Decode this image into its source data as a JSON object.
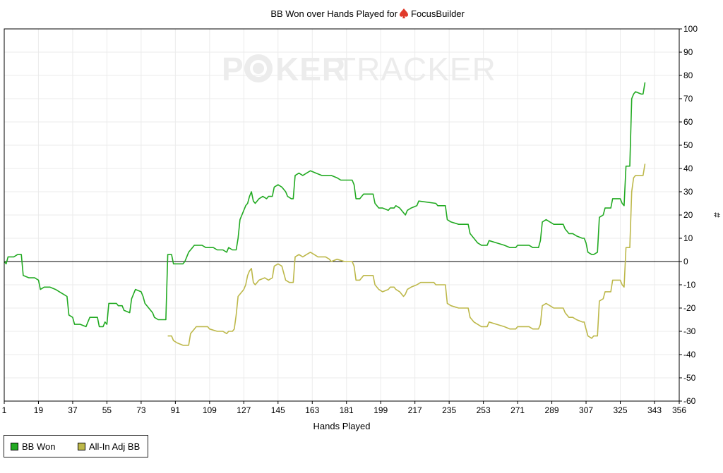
{
  "chart_data": {
    "type": "line",
    "title": "BB Won over Hands Played for",
    "player_name": "FocusBuilder",
    "xlabel": "Hands Played",
    "ylabel": "#",
    "watermark": {
      "part1": "P",
      "part2": "KER",
      "part3": "TRACKER"
    },
    "xlim": [
      1,
      356
    ],
    "ylim": [
      -60,
      100
    ],
    "x_ticks": [
      1,
      19,
      37,
      55,
      73,
      91,
      109,
      127,
      145,
      163,
      181,
      199,
      217,
      235,
      253,
      271,
      289,
      307,
      325,
      343,
      356
    ],
    "y_ticks": [
      -60,
      -50,
      -40,
      -30,
      -20,
      -10,
      0,
      10,
      20,
      30,
      40,
      50,
      60,
      70,
      80,
      90,
      100
    ],
    "grid": true,
    "legend_position": "bottom-left",
    "series": [
      {
        "name": "BB Won",
        "color": "#22aa22",
        "points": [
          [
            1,
            0
          ],
          [
            2,
            -1
          ],
          [
            3,
            2
          ],
          [
            6,
            2
          ],
          [
            8,
            3
          ],
          [
            10,
            3
          ],
          [
            11,
            -6
          ],
          [
            14,
            -7
          ],
          [
            17,
            -7
          ],
          [
            19,
            -8
          ],
          [
            20,
            -12
          ],
          [
            22,
            -11
          ],
          [
            25,
            -11
          ],
          [
            28,
            -12
          ],
          [
            30,
            -13
          ],
          [
            32,
            -14
          ],
          [
            34,
            -15
          ],
          [
            35,
            -23
          ],
          [
            37,
            -24
          ],
          [
            38,
            -27
          ],
          [
            41,
            -27
          ],
          [
            44,
            -28
          ],
          [
            46,
            -24
          ],
          [
            50,
            -24
          ],
          [
            51,
            -28
          ],
          [
            53,
            -28
          ],
          [
            54,
            -26
          ],
          [
            55,
            -27
          ],
          [
            56,
            -18
          ],
          [
            60,
            -18
          ],
          [
            61,
            -19
          ],
          [
            63,
            -19
          ],
          [
            64,
            -21
          ],
          [
            67,
            -22
          ],
          [
            68,
            -16
          ],
          [
            70,
            -12
          ],
          [
            73,
            -13
          ],
          [
            74,
            -15
          ],
          [
            75,
            -18
          ],
          [
            77,
            -20
          ],
          [
            79,
            -22
          ],
          [
            80,
            -24
          ],
          [
            82,
            -25
          ],
          [
            86,
            -25
          ],
          [
            87,
            3
          ],
          [
            89,
            3
          ],
          [
            90,
            -1
          ],
          [
            93,
            -1
          ],
          [
            95,
            -1
          ],
          [
            96,
            0
          ],
          [
            97,
            2
          ],
          [
            98,
            4
          ],
          [
            100,
            6
          ],
          [
            101,
            7
          ],
          [
            105,
            7
          ],
          [
            107,
            6
          ],
          [
            111,
            6
          ],
          [
            113,
            5
          ],
          [
            116,
            5
          ],
          [
            118,
            4
          ],
          [
            119,
            6
          ],
          [
            121,
            5
          ],
          [
            123,
            5
          ],
          [
            124,
            10
          ],
          [
            125,
            18
          ],
          [
            127,
            22
          ],
          [
            128,
            24
          ],
          [
            129,
            25
          ],
          [
            130,
            28
          ],
          [
            131,
            30
          ],
          [
            132,
            26
          ],
          [
            133,
            25
          ],
          [
            135,
            27
          ],
          [
            137,
            28
          ],
          [
            139,
            27
          ],
          [
            140,
            28
          ],
          [
            142,
            28
          ],
          [
            143,
            32
          ],
          [
            145,
            33
          ],
          [
            147,
            32
          ],
          [
            149,
            30
          ],
          [
            150,
            28
          ],
          [
            152,
            27
          ],
          [
            153,
            27
          ],
          [
            154,
            37
          ],
          [
            156,
            38
          ],
          [
            158,
            37
          ],
          [
            160,
            38
          ],
          [
            162,
            39
          ],
          [
            165,
            38
          ],
          [
            168,
            37
          ],
          [
            173,
            37
          ],
          [
            176,
            36
          ],
          [
            178,
            35
          ],
          [
            180,
            35
          ],
          [
            184,
            35
          ],
          [
            185,
            33
          ],
          [
            186,
            27
          ],
          [
            188,
            27
          ],
          [
            190,
            29
          ],
          [
            195,
            29
          ],
          [
            196,
            25
          ],
          [
            198,
            23
          ],
          [
            200,
            23
          ],
          [
            203,
            22
          ],
          [
            204,
            23
          ],
          [
            206,
            23
          ],
          [
            207,
            24
          ],
          [
            209,
            23
          ],
          [
            211,
            21
          ],
          [
            212,
            20
          ],
          [
            213,
            22
          ],
          [
            215,
            23
          ],
          [
            218,
            24
          ],
          [
            219,
            26
          ],
          [
            228,
            25
          ],
          [
            229,
            24
          ],
          [
            233,
            24
          ],
          [
            234,
            18
          ],
          [
            236,
            17
          ],
          [
            240,
            16
          ],
          [
            245,
            16
          ],
          [
            246,
            12
          ],
          [
            248,
            10
          ],
          [
            250,
            8
          ],
          [
            252,
            7
          ],
          [
            255,
            7
          ],
          [
            256,
            9
          ],
          [
            260,
            8
          ],
          [
            264,
            7
          ],
          [
            267,
            6
          ],
          [
            270,
            6
          ],
          [
            271,
            7
          ],
          [
            274,
            7
          ],
          [
            277,
            7
          ],
          [
            279,
            6
          ],
          [
            282,
            6
          ],
          [
            283,
            9
          ],
          [
            284,
            17
          ],
          [
            286,
            18
          ],
          [
            288,
            17
          ],
          [
            290,
            16
          ],
          [
            295,
            16
          ],
          [
            296,
            14
          ],
          [
            298,
            12
          ],
          [
            300,
            12
          ],
          [
            302,
            11
          ],
          [
            305,
            10
          ],
          [
            306,
            10
          ],
          [
            307,
            8
          ],
          [
            308,
            4
          ],
          [
            310,
            3
          ],
          [
            311,
            3
          ],
          [
            313,
            4
          ],
          [
            314,
            19
          ],
          [
            316,
            20
          ],
          [
            317,
            23
          ],
          [
            320,
            23
          ],
          [
            321,
            27
          ],
          [
            325,
            27
          ],
          [
            326,
            25
          ],
          [
            327,
            24
          ],
          [
            328,
            41
          ],
          [
            330,
            41
          ],
          [
            331,
            70
          ],
          [
            332,
            72
          ],
          [
            333,
            73
          ],
          [
            336,
            72
          ],
          [
            337,
            72
          ],
          [
            338,
            77
          ]
        ]
      },
      {
        "name": "All-In Adj BB",
        "color": "#bdb84a",
        "points": [
          [
            87,
            -32
          ],
          [
            89,
            -32
          ],
          [
            90,
            -34
          ],
          [
            92,
            -35
          ],
          [
            95,
            -36
          ],
          [
            98,
            -36
          ],
          [
            99,
            -31
          ],
          [
            100,
            -30
          ],
          [
            101,
            -29
          ],
          [
            102,
            -28
          ],
          [
            108,
            -28
          ],
          [
            109,
            -29
          ],
          [
            113,
            -30
          ],
          [
            116,
            -30
          ],
          [
            118,
            -31
          ],
          [
            119,
            -30
          ],
          [
            121,
            -30
          ],
          [
            122,
            -29
          ],
          [
            123,
            -23
          ],
          [
            124,
            -15
          ],
          [
            127,
            -12
          ],
          [
            128,
            -10
          ],
          [
            129,
            -6
          ],
          [
            130,
            -4
          ],
          [
            131,
            -3
          ],
          [
            132,
            -9
          ],
          [
            133,
            -10
          ],
          [
            135,
            -8
          ],
          [
            138,
            -7
          ],
          [
            140,
            -8
          ],
          [
            142,
            -7
          ],
          [
            143,
            -2
          ],
          [
            145,
            -1
          ],
          [
            147,
            -2
          ],
          [
            149,
            -8
          ],
          [
            151,
            -9
          ],
          [
            153,
            -9
          ],
          [
            154,
            2
          ],
          [
            156,
            3
          ],
          [
            158,
            2
          ],
          [
            160,
            3
          ],
          [
            162,
            4
          ],
          [
            164,
            3
          ],
          [
            166,
            2
          ],
          [
            168,
            2
          ],
          [
            170,
            2
          ],
          [
            172,
            1
          ],
          [
            173,
            0
          ],
          [
            176,
            1
          ],
          [
            180,
            0
          ],
          [
            184,
            0
          ],
          [
            185,
            -2
          ],
          [
            186,
            -8
          ],
          [
            188,
            -8
          ],
          [
            190,
            -6
          ],
          [
            195,
            -6
          ],
          [
            196,
            -10
          ],
          [
            198,
            -12
          ],
          [
            200,
            -13
          ],
          [
            203,
            -12
          ],
          [
            204,
            -11
          ],
          [
            206,
            -11
          ],
          [
            207,
            -12
          ],
          [
            209,
            -13
          ],
          [
            211,
            -15
          ],
          [
            212,
            -14
          ],
          [
            213,
            -12
          ],
          [
            215,
            -11
          ],
          [
            218,
            -10
          ],
          [
            220,
            -9
          ],
          [
            227,
            -9
          ],
          [
            228,
            -10
          ],
          [
            233,
            -10
          ],
          [
            234,
            -18
          ],
          [
            236,
            -19
          ],
          [
            240,
            -20
          ],
          [
            245,
            -20
          ],
          [
            246,
            -24
          ],
          [
            248,
            -26
          ],
          [
            250,
            -27
          ],
          [
            252,
            -28
          ],
          [
            255,
            -28
          ],
          [
            256,
            -26
          ],
          [
            260,
            -27
          ],
          [
            264,
            -28
          ],
          [
            267,
            -29
          ],
          [
            270,
            -29
          ],
          [
            271,
            -28
          ],
          [
            274,
            -28
          ],
          [
            277,
            -28
          ],
          [
            279,
            -29
          ],
          [
            282,
            -29
          ],
          [
            283,
            -27
          ],
          [
            284,
            -19
          ],
          [
            286,
            -18
          ],
          [
            288,
            -19
          ],
          [
            290,
            -20
          ],
          [
            295,
            -20
          ],
          [
            296,
            -22
          ],
          [
            298,
            -24
          ],
          [
            300,
            -24
          ],
          [
            302,
            -25
          ],
          [
            305,
            -26
          ],
          [
            306,
            -26
          ],
          [
            307,
            -29
          ],
          [
            308,
            -32
          ],
          [
            310,
            -33
          ],
          [
            311,
            -32
          ],
          [
            313,
            -32
          ],
          [
            314,
            -17
          ],
          [
            316,
            -16
          ],
          [
            317,
            -13
          ],
          [
            320,
            -13
          ],
          [
            321,
            -8
          ],
          [
            325,
            -8
          ],
          [
            326,
            -10
          ],
          [
            327,
            -11
          ],
          [
            328,
            6
          ],
          [
            330,
            6
          ],
          [
            331,
            30
          ],
          [
            332,
            36
          ],
          [
            333,
            37
          ],
          [
            336,
            37
          ],
          [
            337,
            37
          ],
          [
            338,
            42
          ]
        ]
      }
    ]
  }
}
